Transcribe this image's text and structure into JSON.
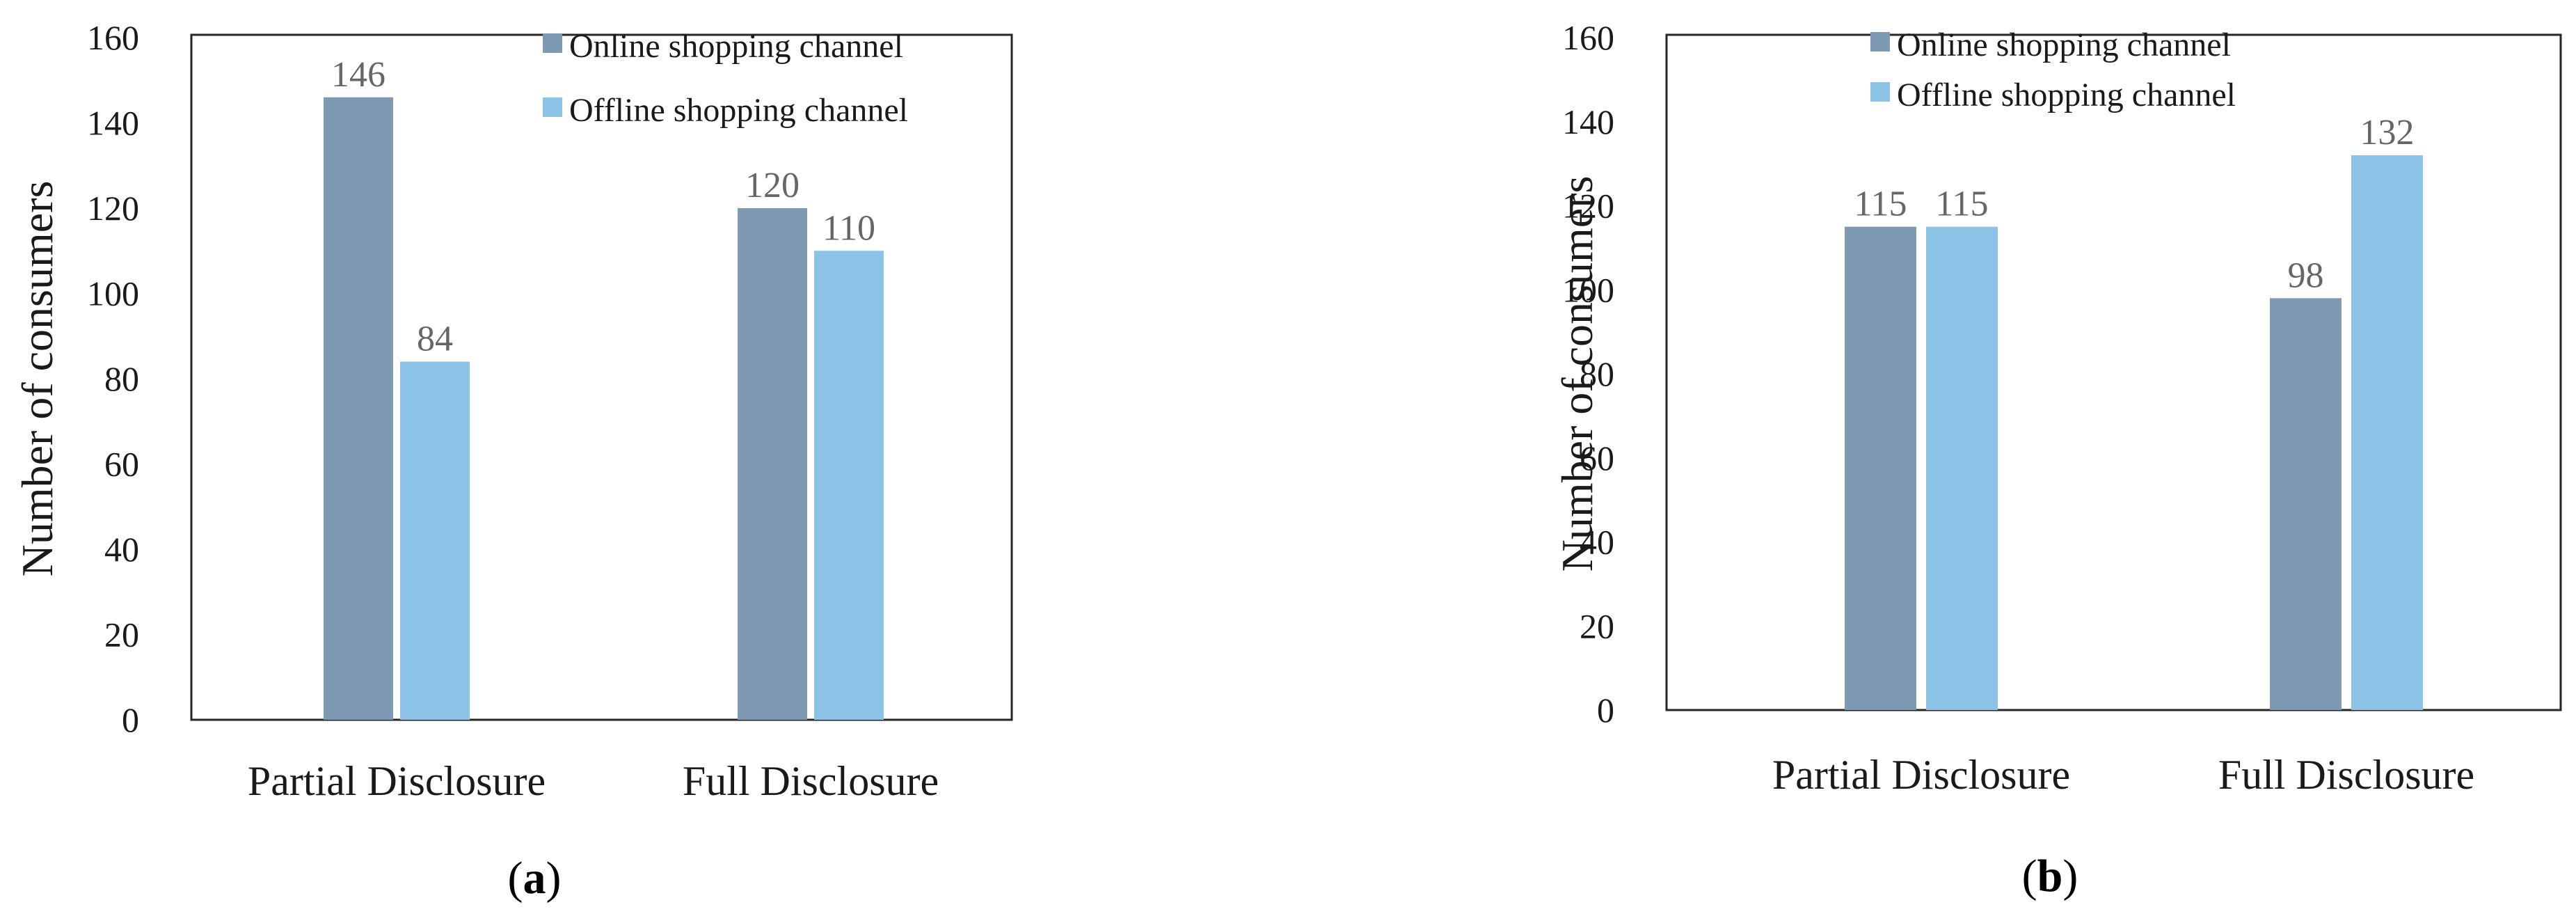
{
  "chart_data": [
    {
      "type": "bar",
      "caption": "a",
      "categories": [
        "Partial Disclosure",
        "Full Disclosure"
      ],
      "series": [
        {
          "name": "Online shopping channel",
          "color": "#7e99b2",
          "values": [
            146,
            120
          ]
        },
        {
          "name": "Offline shopping channel",
          "color": "#8dc3e6",
          "values": [
            84,
            110
          ]
        }
      ],
      "ylabel": "Number of consumers",
      "ylim": [
        0,
        160
      ],
      "yticks": [
        0,
        20,
        40,
        60,
        80,
        100,
        120,
        140,
        160
      ],
      "grid": false,
      "legend_position": "top-right"
    },
    {
      "type": "bar",
      "caption": "b",
      "categories": [
        "Partial Disclosure",
        "Full Disclosure"
      ],
      "series": [
        {
          "name": "Online shopping channel",
          "color": "#7e99b2",
          "values": [
            115,
            98
          ]
        },
        {
          "name": "Offline shopping channel",
          "color": "#8dc3e6",
          "values": [
            115,
            132
          ]
        }
      ],
      "ylabel": "Number of consumers",
      "ylim": [
        0,
        160
      ],
      "yticks": [
        0,
        20,
        40,
        60,
        80,
        100,
        120,
        140,
        160
      ],
      "grid": false,
      "legend_position": "top-center"
    }
  ],
  "caption_parens": [
    "(",
    ")"
  ]
}
